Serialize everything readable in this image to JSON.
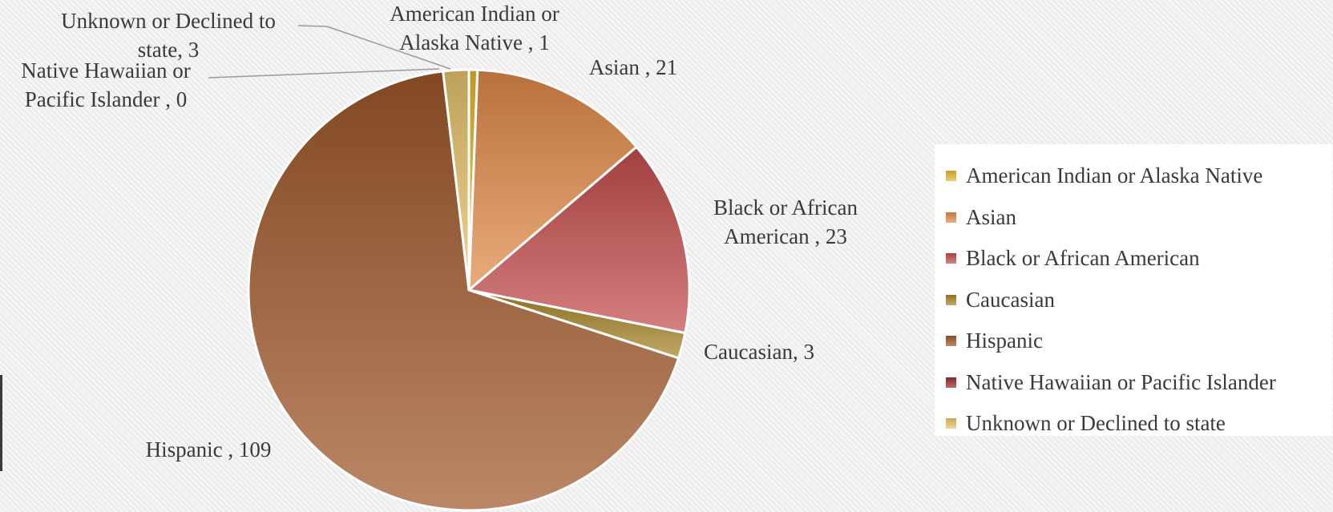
{
  "chart_data": {
    "type": "pie",
    "title": "",
    "legend_position": "right",
    "categories": [
      "American Indian or Alaska Native",
      "Asian",
      "Black or African American",
      "Caucasian",
      "Hispanic",
      "Native Hawaiian or Pacific Islander",
      "Unknown or Declined to state"
    ],
    "values": [
      1,
      21,
      23,
      3,
      109,
      0,
      3
    ],
    "colors": [
      "#e8b830",
      "#e28a48",
      "#c44d4d",
      "#a8862a",
      "#a0582a",
      "#9a2e2e",
      "#e8c46c"
    ],
    "data_labels": [
      [
        "American Indian or",
        "Alaska Native , 1"
      ],
      [
        "Asian , 21"
      ],
      [
        "Black or African",
        "American , 23"
      ],
      [
        "Caucasian, 3"
      ],
      [
        "Hispanic , 109"
      ],
      [
        "Native Hawaiian or",
        "Pacific Islander , 0"
      ],
      [
        "Unknown or Declined to",
        "state, 3"
      ]
    ]
  }
}
